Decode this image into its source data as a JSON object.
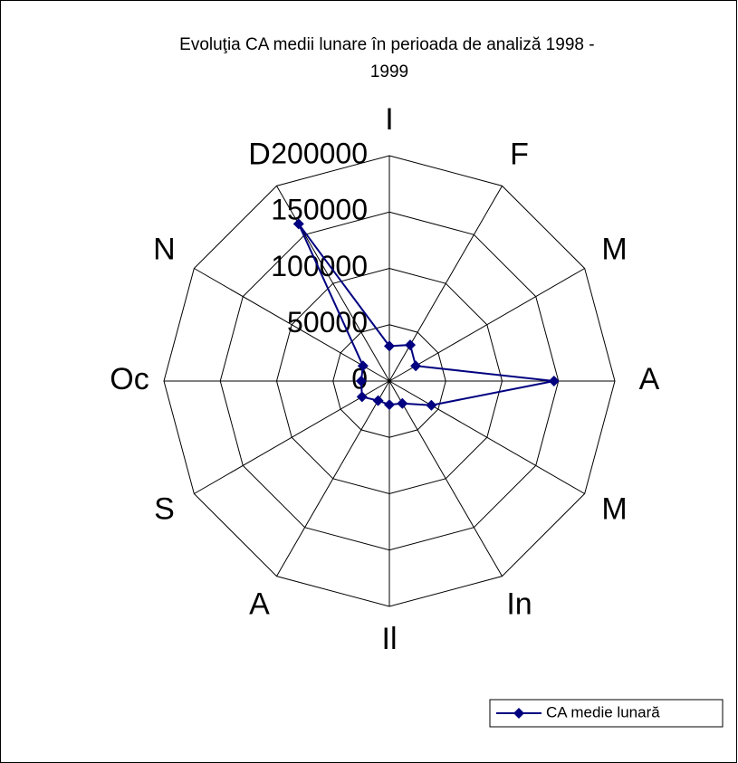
{
  "chart_data": {
    "type": "radar",
    "title": "Evoluţia CA medii lunare în perioada de analiză 1998 - 1999",
    "categories": [
      "I",
      "F",
      "M",
      "A",
      "M",
      "In",
      "Il",
      "A",
      "S",
      "Oc",
      "N",
      "D"
    ],
    "series": [
      {
        "name": "CA medie lunară",
        "color": "#000080",
        "values": [
          31000,
          37000,
          27000,
          146000,
          43000,
          23000,
          21000,
          20000,
          28000,
          25000,
          27000,
          161000
        ]
      }
    ],
    "ylim": [
      0,
      200000
    ],
    "yticks": [
      0,
      50000,
      100000,
      150000,
      200000
    ],
    "grid": true
  }
}
